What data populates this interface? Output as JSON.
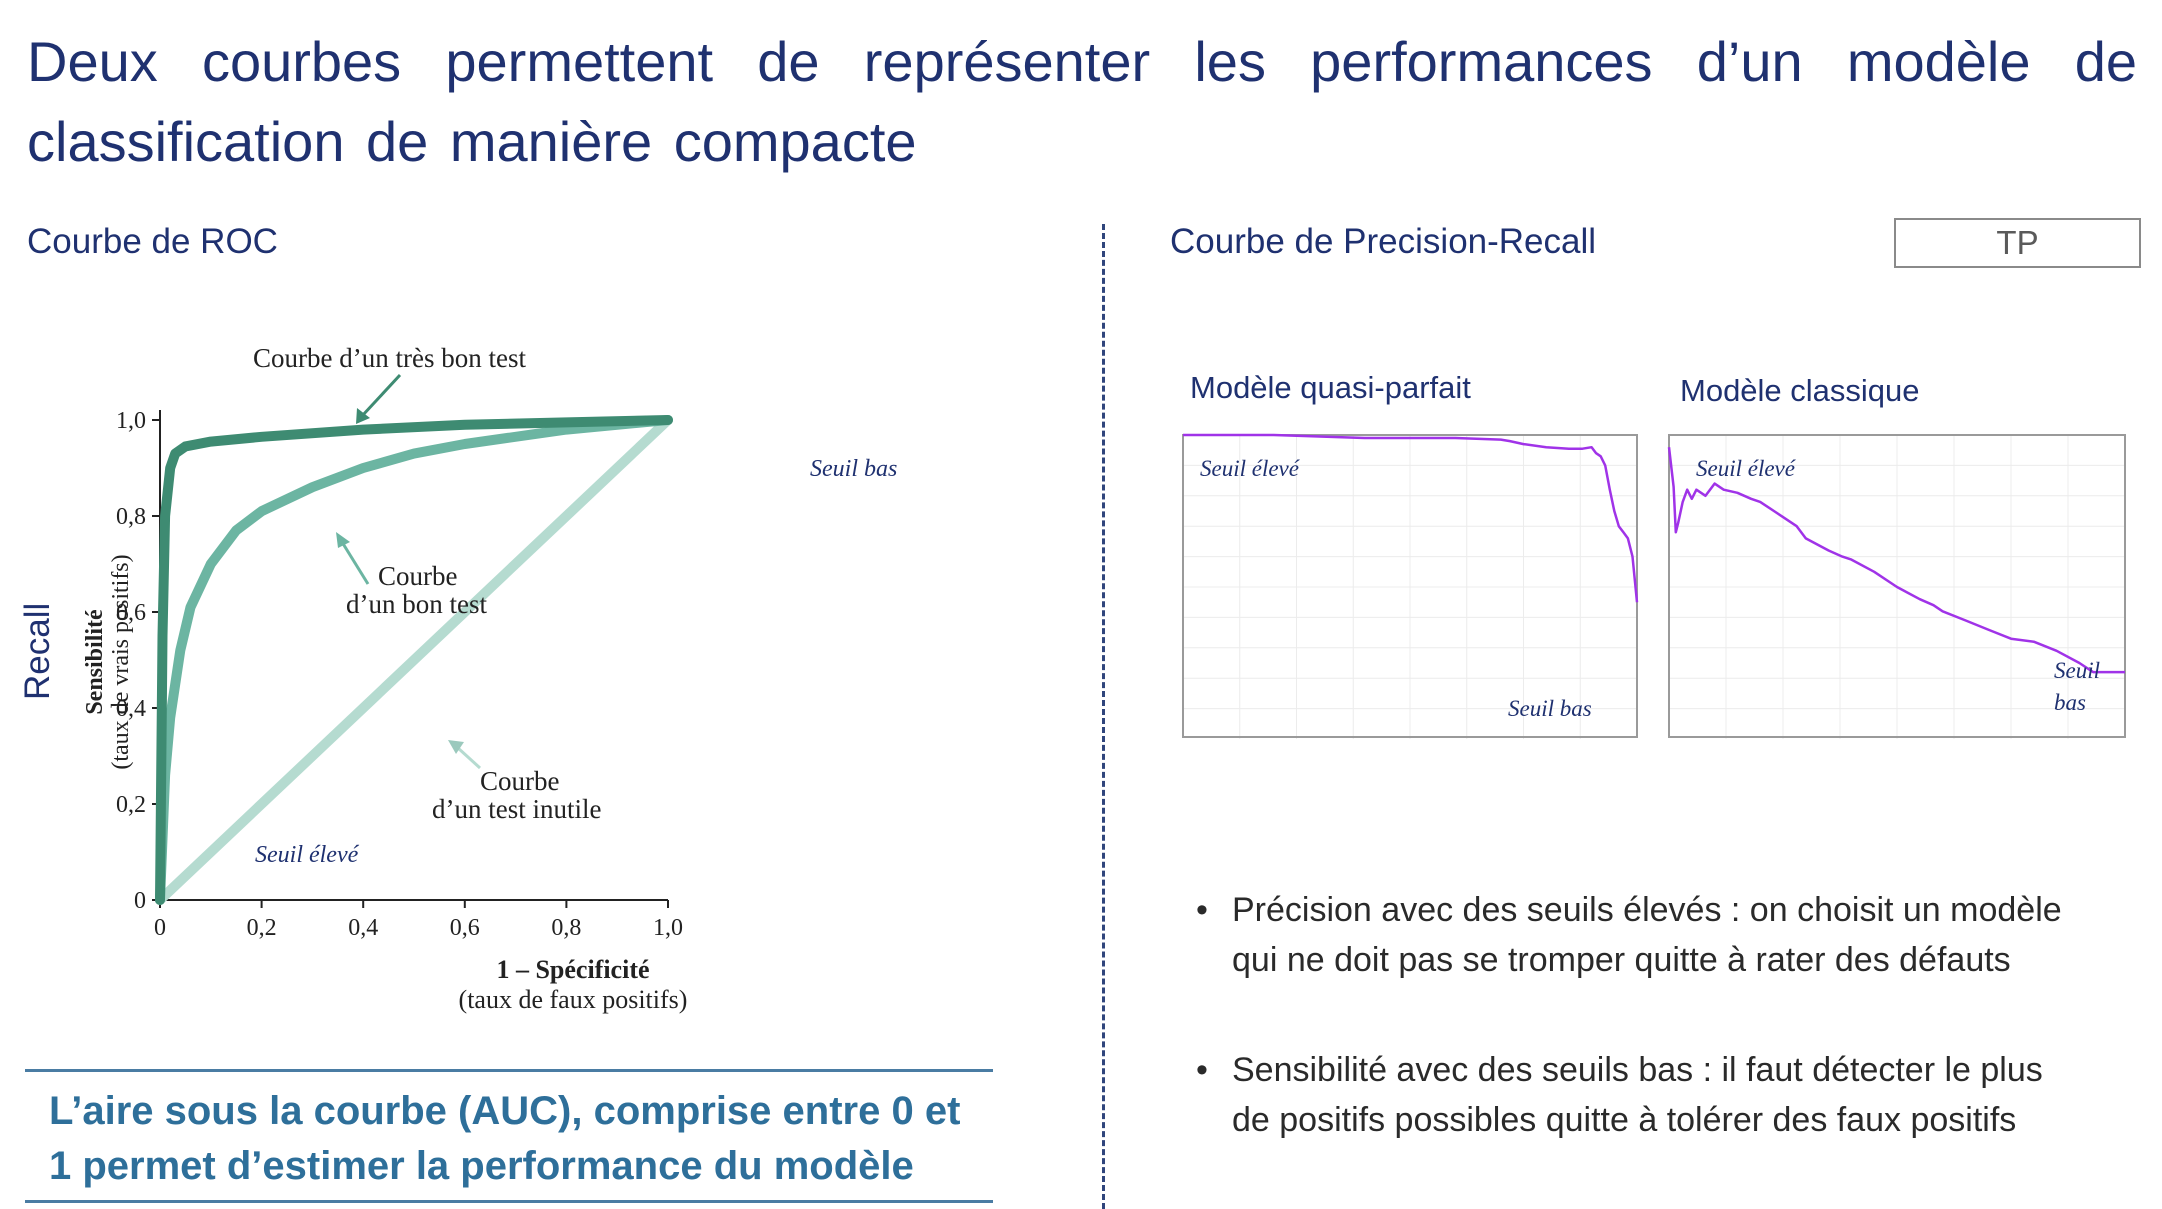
{
  "slide": {
    "title": "Deux courbes permettent de représenter les performances d’un modèle de classification de manière compacte",
    "tp_label": "TP"
  },
  "roc": {
    "section_title": "Courbe de ROC",
    "recall_label": "Recall",
    "auc_text": "L’aire sous la courbe (AUC), comprise entre 0 et 1 permet d’estimer la performance du modèle",
    "annotations": {
      "very_good": "Courbe d’un très bon test",
      "good_line1": "Courbe",
      "good_line2": "d’un bon test",
      "useless_line1": "Courbe",
      "useless_line2": "d’un test inutile",
      "seuil_bas": "Seuil bas",
      "seuil_eleve": "Seuil élevé"
    }
  },
  "pr": {
    "section_title": "Courbe de Precision-Recall",
    "panel1_title": "Modèle quasi-parfait",
    "panel2_title": "Modèle classique",
    "seuil_eleve": "Seuil élevé",
    "seuil_bas": "Seuil bas",
    "seuil_bas_2_line1": "Seuil",
    "seuil_bas_2_line2": "bas",
    "curve_color": "#a033e8"
  },
  "bullets": {
    "b1_line1": "Précision avec des seuils élevés : on choisit un modèle",
    "b1_line2": "qui ne doit pas se tromper quitte à rater des défauts",
    "b2_line1": "Sensibilité avec des seuils bas : il faut détecter le plus",
    "b2_line2": "de positifs possibles quitte à tolérer des faux positifs"
  },
  "chart_data": [
    {
      "type": "line",
      "xlabel": "1 – Spécificité",
      "xlabel_sub": "(taux de faux positifs)",
      "ylabel": "Sensibilité",
      "ylabel_sub": "(taux de vrais positifs)",
      "xlim": [
        0,
        1
      ],
      "ylim": [
        0,
        1
      ],
      "x_ticks": [
        "0",
        "0,2",
        "0,4",
        "0,6",
        "0,8",
        "1,0"
      ],
      "y_ticks": [
        "0",
        "0,2",
        "0,4",
        "0,6",
        "0,8",
        "1,0"
      ],
      "colors": [
        "#3e8b72",
        "#6cb5a2",
        "#b5dbd0"
      ],
      "series": [
        {
          "name": "Courbe d’un très bon test",
          "x": [
            0,
            0.005,
            0.01,
            0.02,
            0.03,
            0.05,
            0.1,
            0.2,
            0.4,
            0.6,
            0.8,
            1.0
          ],
          "y": [
            0,
            0.55,
            0.8,
            0.9,
            0.93,
            0.945,
            0.955,
            0.965,
            0.98,
            0.99,
            0.995,
            1.0
          ]
        },
        {
          "name": "Courbe d’un bon test",
          "x": [
            0,
            0.01,
            0.02,
            0.04,
            0.06,
            0.1,
            0.15,
            0.2,
            0.3,
            0.4,
            0.5,
            0.6,
            0.8,
            1.0
          ],
          "y": [
            0,
            0.26,
            0.38,
            0.52,
            0.61,
            0.7,
            0.77,
            0.81,
            0.86,
            0.9,
            0.93,
            0.95,
            0.98,
            1.0
          ]
        },
        {
          "name": "Courbe d’un test inutile",
          "x": [
            0,
            1.0
          ],
          "y": [
            0,
            1.0
          ]
        }
      ]
    },
    {
      "type": "line",
      "title": "Modèle quasi-parfait",
      "xlim": [
        0,
        1
      ],
      "ylim": [
        0,
        1
      ],
      "grid": true,
      "series": [
        {
          "x": [
            0,
            0.05,
            0.1,
            0.2,
            0.3,
            0.4,
            0.5,
            0.6,
            0.7,
            0.72,
            0.75,
            0.8,
            0.85,
            0.88,
            0.9,
            0.91,
            0.92,
            0.93,
            0.94,
            0.95,
            0.96,
            0.97,
            0.98,
            0.99,
            1.0
          ],
          "y": [
            1.0,
            1.0,
            1.0,
            1.0,
            0.995,
            0.99,
            0.99,
            0.99,
            0.985,
            0.98,
            0.97,
            0.96,
            0.955,
            0.955,
            0.96,
            0.94,
            0.93,
            0.9,
            0.82,
            0.75,
            0.7,
            0.68,
            0.66,
            0.6,
            0.45
          ]
        }
      ]
    },
    {
      "type": "line",
      "title": "Modèle classique",
      "xlim": [
        0,
        1
      ],
      "ylim": [
        0,
        1
      ],
      "grid": true,
      "series": [
        {
          "x": [
            0,
            0.01,
            0.015,
            0.02,
            0.03,
            0.04,
            0.05,
            0.06,
            0.08,
            0.1,
            0.12,
            0.15,
            0.18,
            0.2,
            0.23,
            0.25,
            0.28,
            0.3,
            0.35,
            0.38,
            0.4,
            0.45,
            0.5,
            0.55,
            0.58,
            0.6,
            0.65,
            0.7,
            0.75,
            0.8,
            0.85,
            0.9,
            0.93,
            0.95,
            1.0
          ],
          "y": [
            0.96,
            0.83,
            0.68,
            0.71,
            0.78,
            0.82,
            0.79,
            0.82,
            0.8,
            0.84,
            0.82,
            0.81,
            0.79,
            0.78,
            0.75,
            0.73,
            0.7,
            0.66,
            0.62,
            0.6,
            0.59,
            0.55,
            0.5,
            0.46,
            0.44,
            0.42,
            0.39,
            0.36,
            0.33,
            0.32,
            0.29,
            0.25,
            0.22,
            0.22,
            0.22
          ]
        }
      ]
    }
  ]
}
